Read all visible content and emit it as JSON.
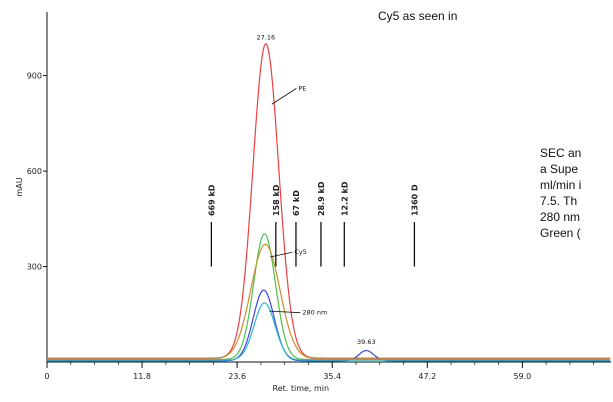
{
  "caption": {
    "top": "Cy5 as seen in",
    "lines": [
      "SEC an",
      "a Supe",
      "ml/min i",
      "7.5.  Th",
      "280 nm",
      "Green ("
    ]
  },
  "chart_data": {
    "type": "line",
    "title": "",
    "xlabel": "Ret. time, min",
    "ylabel": "mAU",
    "xlim": [
      0,
      70
    ],
    "ylim": [
      0,
      1100
    ],
    "x_ticks": [
      0,
      11.8,
      23.6,
      35.4,
      47.2,
      59.0
    ],
    "x_tick_labels": [
      "0",
      "11.8",
      "23.6",
      "35.4",
      "47.2",
      "59.0"
    ],
    "y_ticks": [
      300,
      600,
      900
    ],
    "y_tick_labels": [
      "300",
      "600",
      "900"
    ],
    "grid": false,
    "legend": "none",
    "series": [
      {
        "name": "PE",
        "color": "#ee4040",
        "baseline": 12,
        "peaks": [
          {
            "center": 27.16,
            "height": 988,
            "width": 1.6
          }
        ]
      },
      {
        "name": "Cy5",
        "color": "#4fc24f",
        "baseline": 8,
        "peaks": [
          {
            "center": 27.0,
            "height": 395,
            "width": 1.35
          }
        ]
      },
      {
        "name": "280 nm",
        "color": "#3a48e0",
        "baseline": 4,
        "peaks": [
          {
            "center": 26.9,
            "height": 222,
            "width": 1.3
          },
          {
            "center": 39.63,
            "height": 32,
            "width": 0.9
          }
        ]
      },
      {
        "name": "",
        "color": "#30b8c8",
        "baseline": 6,
        "peaks": [
          {
            "center": 27.0,
            "height": 180,
            "width": 1.3
          }
        ]
      },
      {
        "name": "",
        "color": "#c89030",
        "baseline": 10,
        "peaks": [
          {
            "center": 27.1,
            "height": 360,
            "width": 1.8
          }
        ]
      }
    ],
    "peak_labels": [
      {
        "text": "27.16",
        "x": 27.16,
        "y": 988
      },
      {
        "text": "39.63",
        "x": 39.63,
        "y": 32
      }
    ],
    "series_labels": [
      {
        "text": "PE",
        "x": 27.9,
        "y": 810,
        "lx": 31.2,
        "ly": 860
      },
      {
        "text": "Cy5",
        "x": 27.7,
        "y": 330,
        "lx": 30.7,
        "ly": 345
      },
      {
        "text": "280 nm",
        "x": 27.6,
        "y": 160,
        "lx": 31.7,
        "ly": 155
      }
    ],
    "standards": [
      {
        "label": "669 kD",
        "x": 20.4
      },
      {
        "label": "158 kD",
        "x": 28.4
      },
      {
        "label": "67 kD",
        "x": 30.9
      },
      {
        "label": "28.9 kD",
        "x": 34.0
      },
      {
        "label": "12.2 kD",
        "x": 36.9
      },
      {
        "label": "1360 D",
        "x": 45.6
      }
    ],
    "standard_marker_range": [
      300,
      440
    ]
  }
}
